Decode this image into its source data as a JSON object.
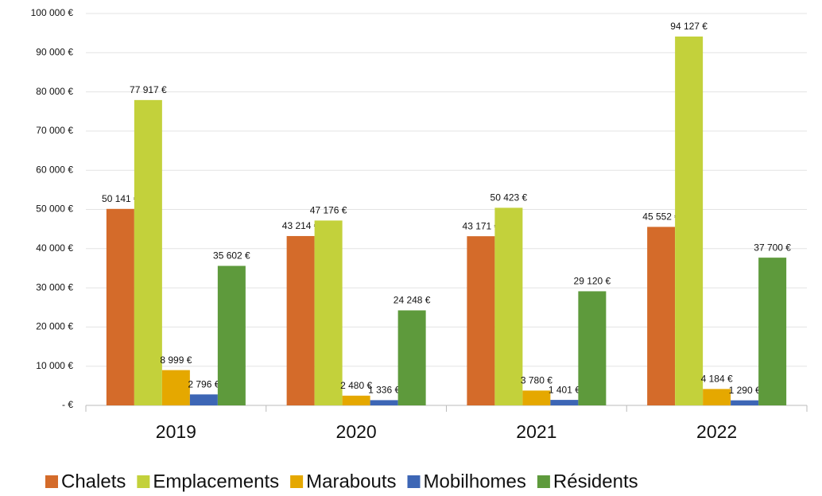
{
  "chart_data": {
    "type": "bar",
    "categories": [
      "2019",
      "2020",
      "2021",
      "2022"
    ],
    "series": [
      {
        "name": "Chalets",
        "color": "#d46b2a",
        "values": [
          50141,
          43214,
          43171,
          45552
        ],
        "value_labels": [
          "50 141 €",
          "43 214 €",
          "43 171 €",
          "45 552 €"
        ]
      },
      {
        "name": "Emplacements",
        "color": "#c3d13b",
        "values": [
          77917,
          47176,
          50423,
          94127
        ],
        "value_labels": [
          "77 917 €",
          "47 176 €",
          "50 423 €",
          "94 127 €"
        ]
      },
      {
        "name": "Marabouts",
        "color": "#e5a800",
        "values": [
          8999,
          2480,
          3780,
          4184
        ],
        "value_labels": [
          "8 999 €",
          "2 480 €",
          "3 780 €",
          "4 184 €"
        ]
      },
      {
        "name": "Mobilhomes",
        "color": "#3d66b5",
        "values": [
          2796,
          1336,
          1401,
          1290
        ],
        "value_labels": [
          "2 796 €",
          "1 336 €",
          "1 401 €",
          "1 290 €"
        ]
      },
      {
        "name": "Résidents",
        "color": "#5e9a3c",
        "values": [
          35602,
          24248,
          29120,
          37700
        ],
        "value_labels": [
          "35 602 €",
          "24 248 €",
          "29 120 €",
          "37 700 €"
        ]
      }
    ],
    "ylim": [
      0,
      100000
    ],
    "yticks": [
      {
        "value": 0,
        "label": "-  €"
      },
      {
        "value": 10000,
        "label": "10 000 €"
      },
      {
        "value": 20000,
        "label": "20 000 €"
      },
      {
        "value": 30000,
        "label": "30 000 €"
      },
      {
        "value": 40000,
        "label": "40 000 €"
      },
      {
        "value": 50000,
        "label": "50 000 €"
      },
      {
        "value": 60000,
        "label": "60 000 €"
      },
      {
        "value": 70000,
        "label": "70 000 €"
      },
      {
        "value": 80000,
        "label": "80 000 €"
      },
      {
        "value": 90000,
        "label": "90 000 €"
      },
      {
        "value": 100000,
        "label": "100 000 €"
      }
    ],
    "grid": true,
    "legend": "bottom"
  }
}
